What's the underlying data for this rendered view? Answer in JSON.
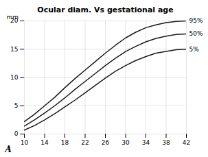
{
  "chart_data": {
    "type": "line",
    "title": "Ocular diam. Vs gestational age",
    "ylabel": "mm",
    "annotations": [
      "A"
    ],
    "x": [
      10,
      12,
      14,
      16,
      18,
      20,
      22,
      24,
      26,
      28,
      30,
      32,
      34,
      36,
      38,
      40,
      42
    ],
    "series": [
      {
        "name": "95%",
        "color": "#1a1a1a",
        "values": [
          2.2,
          3.5,
          5.0,
          6.5,
          8.2,
          9.8,
          11.3,
          12.8,
          14.3,
          15.7,
          17.0,
          18.0,
          18.8,
          19.3,
          19.7,
          19.9,
          20.0
        ]
      },
      {
        "name": "50%",
        "color": "#1a1a1a",
        "values": [
          1.4,
          2.5,
          3.7,
          5.0,
          6.4,
          7.9,
          9.3,
          10.7,
          12.1,
          13.4,
          14.6,
          15.5,
          16.3,
          16.9,
          17.3,
          17.6,
          17.7
        ]
      },
      {
        "name": "5%",
        "color": "#1a1a1a",
        "values": [
          0.7,
          1.5,
          2.5,
          3.6,
          4.8,
          6.0,
          7.3,
          8.6,
          9.9,
          11.1,
          12.1,
          13.0,
          13.7,
          14.3,
          14.6,
          14.9,
          15.0
        ]
      }
    ],
    "xlim": [
      10,
      42
    ],
    "ylim": [
      0,
      20
    ],
    "xticks": [
      10,
      14,
      18,
      22,
      26,
      30,
      34,
      38,
      42
    ],
    "yticks": [
      0,
      5,
      10,
      15,
      20
    ],
    "grid": true
  }
}
